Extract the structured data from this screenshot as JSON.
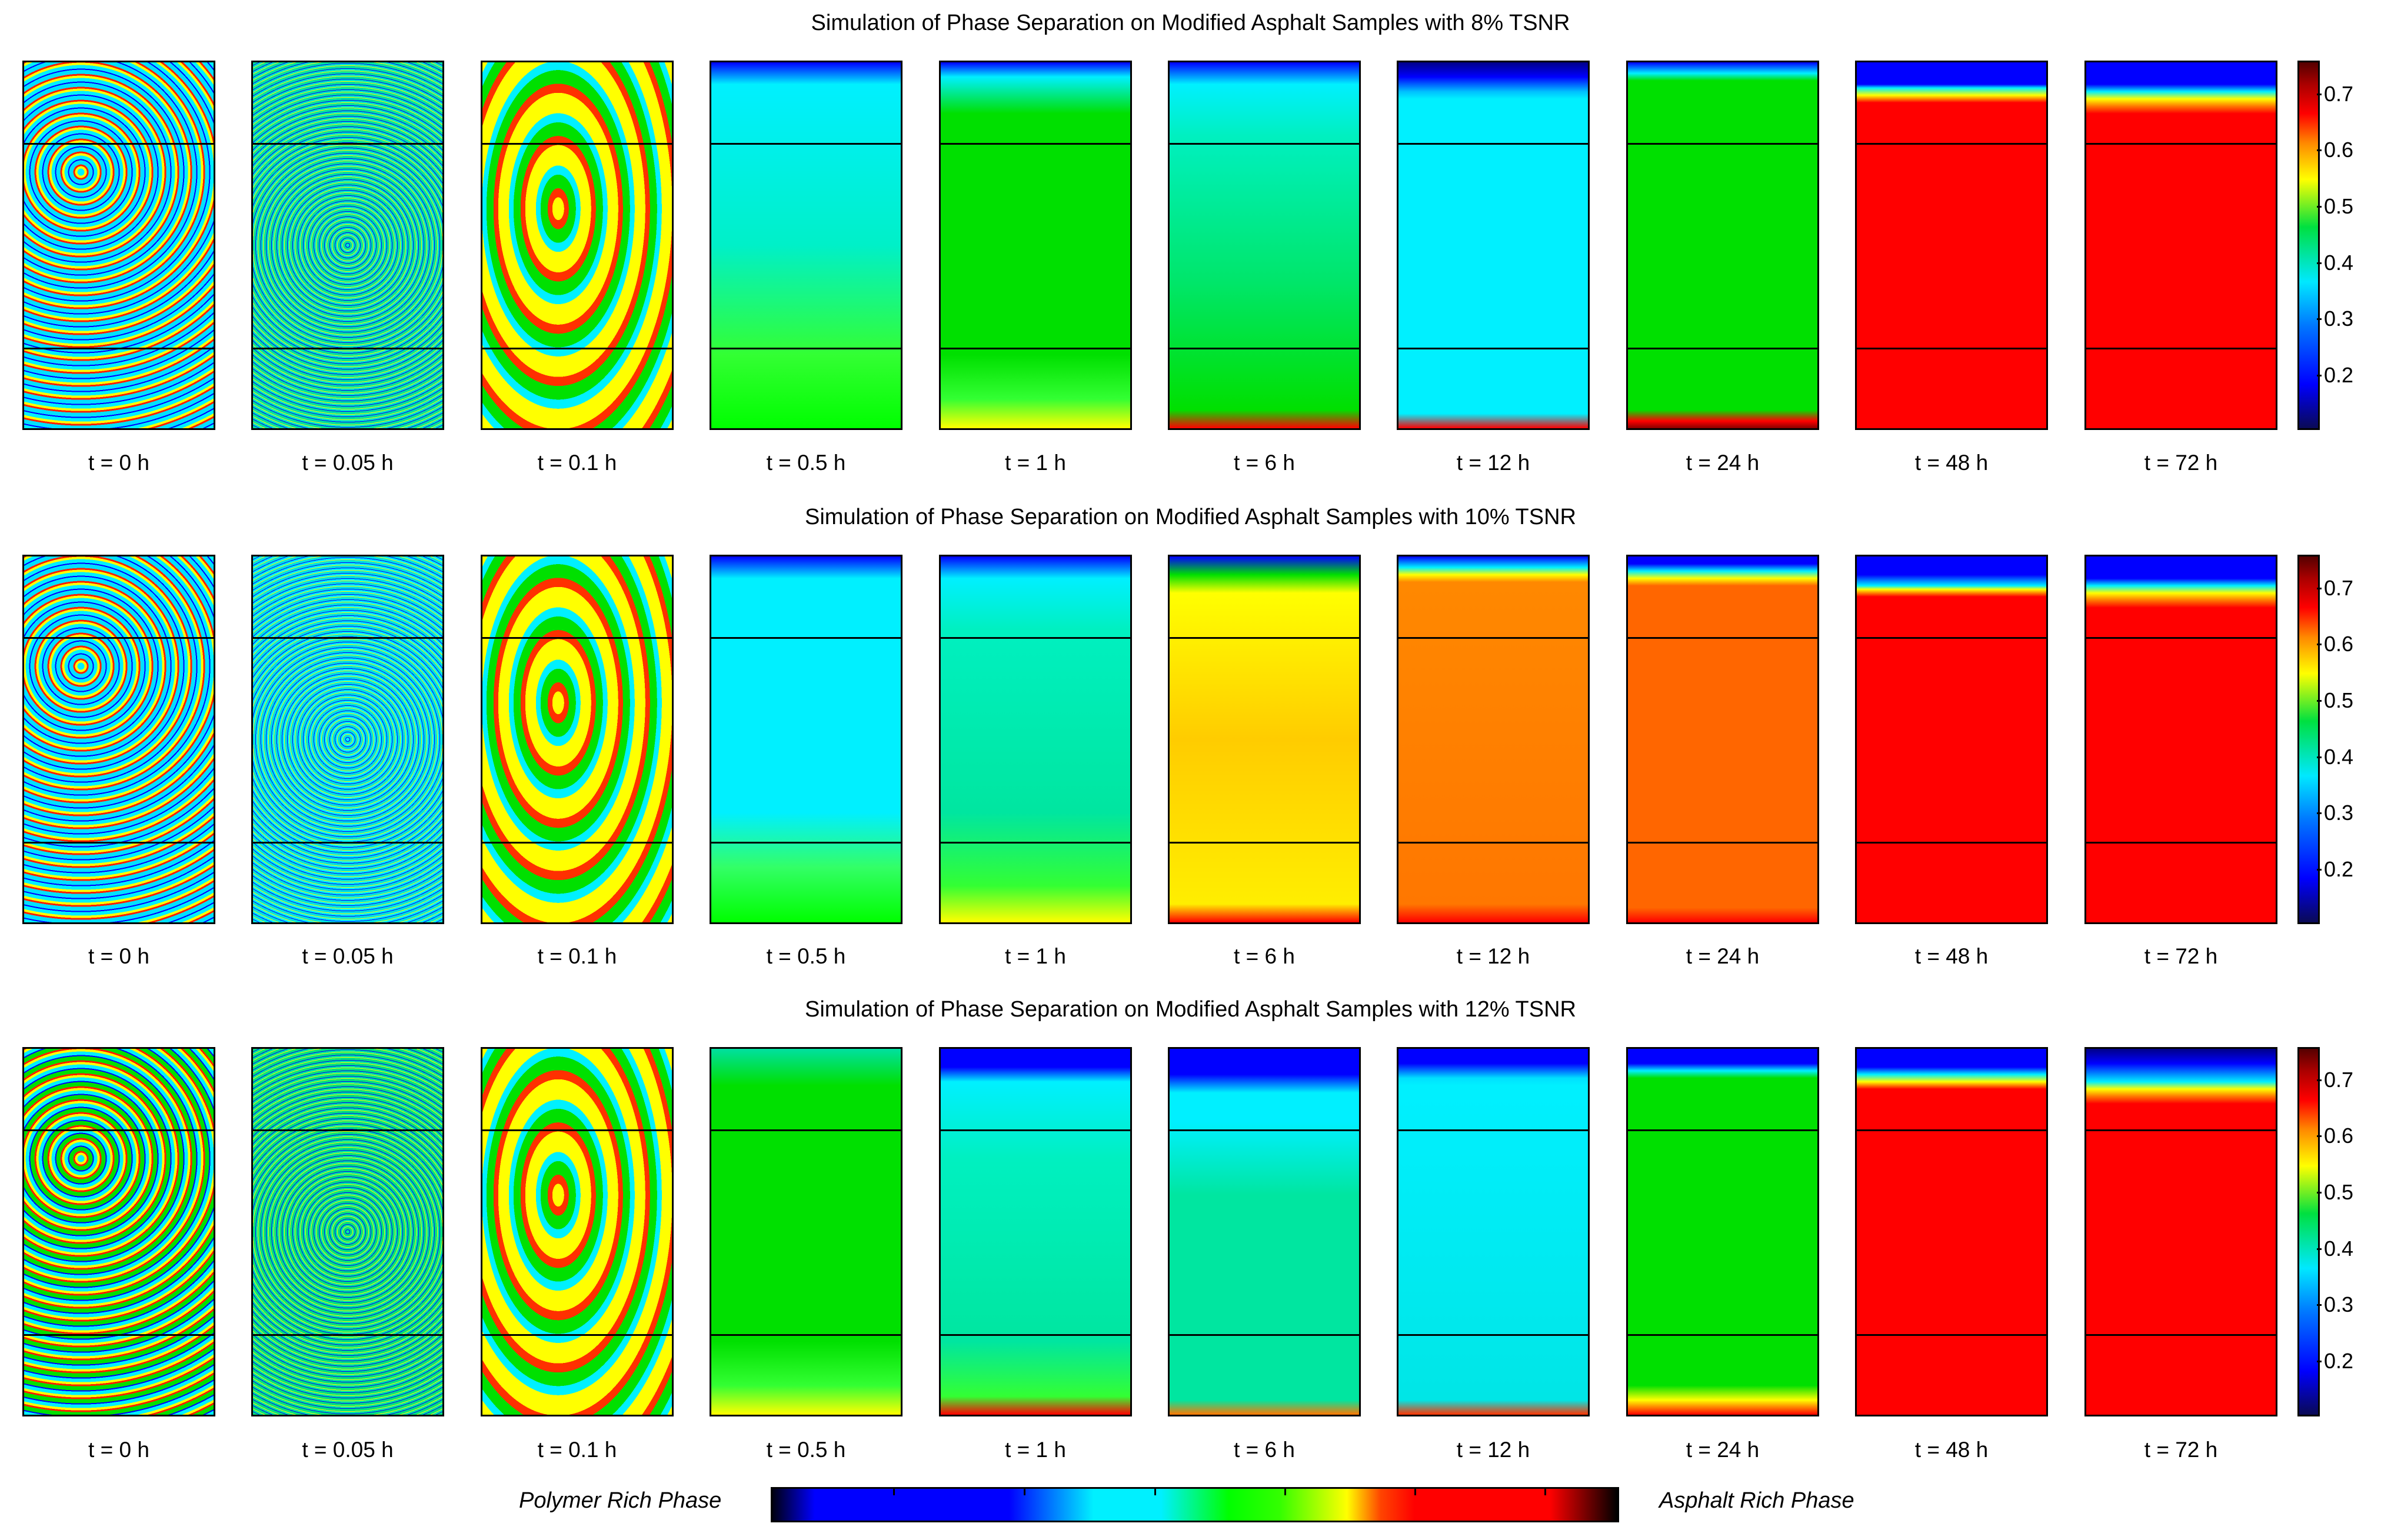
{
  "rows": [
    {
      "title": "Simulation of Phase Separation on Modified Asphalt Samples with 8% TSNR"
    },
    {
      "title": "Simulation of Phase Separation on Modified Asphalt Samples with 10% TSNR"
    },
    {
      "title": "Simulation of Phase Separation on Modified Asphalt Samples with 12% TSNR"
    }
  ],
  "time_labels": [
    "t = 0 h",
    "t = 0.05 h",
    "t = 0.1 h",
    "t = 0.5 h",
    "t = 1 h",
    "t = 6 h",
    "t = 12 h",
    "t = 24 h",
    "t = 48 h",
    "t = 72 h"
  ],
  "colorbar_ticks": [
    "0.7",
    "0.6",
    "0.5",
    "0.4",
    "0.3",
    "0.2"
  ],
  "legend": {
    "left": "Polymer Rich Phase",
    "right": "Asphalt Rich Phase"
  },
  "colors": {
    "navy": "#00008b",
    "blue": "#0000ff",
    "cyan": "#00f0ff",
    "green": "#00ff00",
    "yellow": "#ffff00",
    "orange": "#ff7700",
    "red": "#ff0000"
  }
}
